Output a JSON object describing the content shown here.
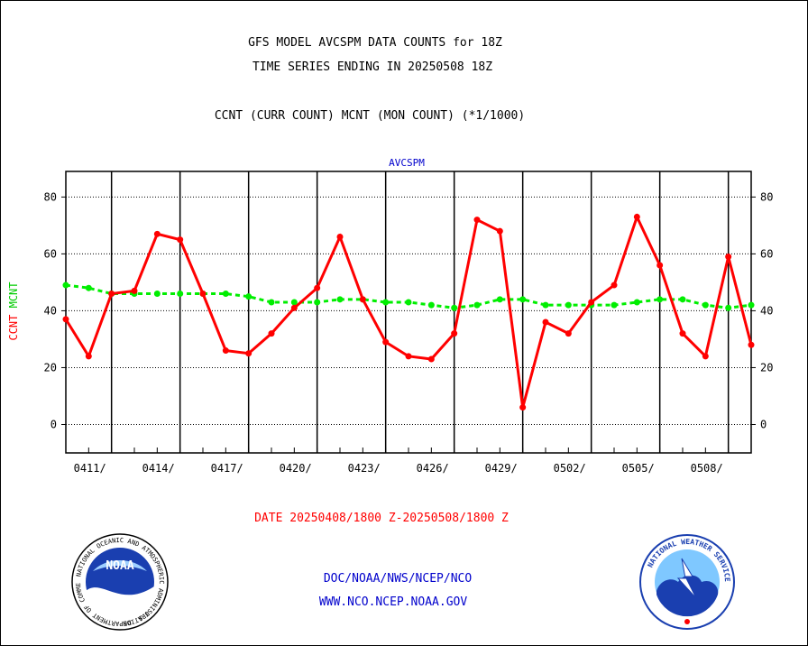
{
  "header": {
    "title_line1": "GFS MODEL AVCSPM DATA COUNTS for 18Z",
    "title_line2": "TIME SERIES ENDING IN 20250508 18Z",
    "subtitle": "CCNT (CURR COUNT) MCNT (MON COUNT) (*1/1000)"
  },
  "footer": {
    "date_range": "DATE 20250408/1800 Z-20250508/1800 Z",
    "org_line": "DOC/NOAA/NWS/NCEP/NCO",
    "url_line": "WWW.NCO.NCEP.NOAA.GOV"
  },
  "logos": {
    "noaa": {
      "word": "NOAA",
      "ring_text": "NATIONAL OCEANIC AND ATMOSPHERIC ADMINISTRATION",
      "ring_text_bottom": "U.S. DEPARTMENT OF COMMERCE"
    },
    "nws": {
      "ring_text": "NATIONAL WEATHER SERVICE"
    }
  },
  "colors": {
    "ccnt": "#ff0000",
    "mcnt": "#00ee00",
    "plot_label": "#0000cc",
    "footer_blue": "#0000cc",
    "footer_red": "#ff0000"
  },
  "chart_data": {
    "type": "line",
    "title": "AVCSPM",
    "ylabel_left_ccnt": "CCNT",
    "ylabel_left_mcnt": "MCNT",
    "ylim": [
      -10,
      89
    ],
    "yticks": [
      0,
      20,
      40,
      60,
      80
    ],
    "xlim": [
      0,
      30
    ],
    "xtick_positions": [
      2,
      5,
      8,
      11,
      14,
      17,
      20,
      23,
      26,
      29
    ],
    "xtick_labels": [
      "0411/",
      "0414/",
      "0417/",
      "0420/",
      "0423/",
      "0426/",
      "0429/",
      "0502/",
      "0505/",
      "0508/"
    ],
    "grid": true,
    "series": [
      {
        "name": "CCNT",
        "values": [
          37,
          24,
          46,
          47,
          67,
          65,
          46,
          26,
          25,
          32,
          41,
          48,
          66,
          44,
          29,
          24,
          23,
          32,
          72,
          68,
          6,
          36,
          32,
          43,
          49,
          73,
          56,
          32,
          24,
          59,
          28
        ]
      },
      {
        "name": "MCNT",
        "values": [
          49,
          48,
          46,
          46,
          46,
          46,
          46,
          46,
          45,
          43,
          43,
          43,
          44,
          44,
          43,
          43,
          42,
          41,
          42,
          44,
          44,
          42,
          42,
          42,
          42,
          43,
          44,
          44,
          42,
          41,
          42
        ]
      }
    ]
  }
}
